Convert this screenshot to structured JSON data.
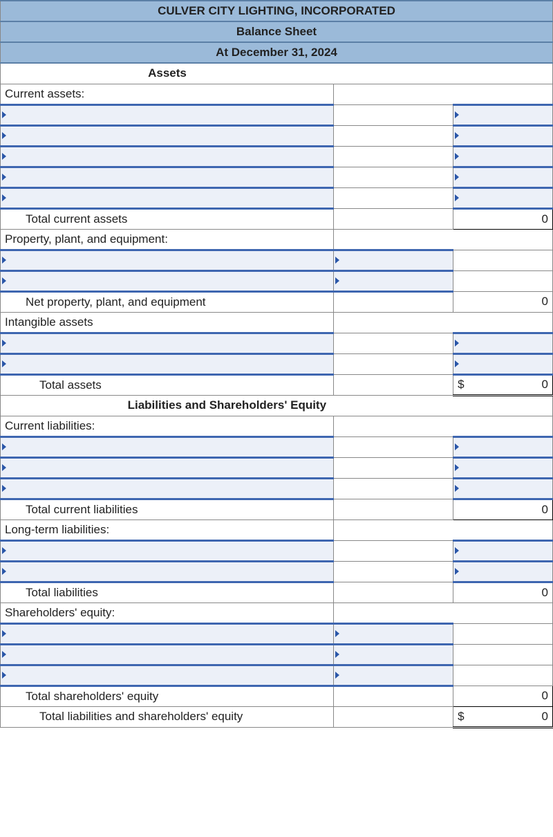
{
  "colors": {
    "header_bg": "#9bbad9",
    "header_border": "#5b7fa6",
    "dropdown_bg": "#ecf0f8",
    "dropdown_border": "#3e66b0",
    "cell_border": "#888888",
    "text": "#222222"
  },
  "header": {
    "company": "CULVER CITY LIGHTING, INCORPORATED",
    "title": "Balance Sheet",
    "date": "At December 31, 2024"
  },
  "sections": {
    "assets": "Assets",
    "liab_equity": "Liabilities and Shareholders' Equity"
  },
  "labels": {
    "current_assets": "Current assets:",
    "total_current_assets": "Total current assets",
    "ppe": "Property, plant, and equipment:",
    "net_ppe": "Net property, plant, and equipment",
    "intangible": "Intangible assets",
    "total_assets": "Total assets",
    "current_liab": "Current liabilities:",
    "total_current_liab": "Total current liabilities",
    "long_term_liab": "Long-term liabilities:",
    "total_liab": "Total liabilities",
    "sh_equity": "Shareholders' equity:",
    "total_sh_equity": "Total shareholders' equity",
    "total_liab_equity": "Total liabilities and shareholders' equity"
  },
  "values": {
    "total_current_assets": "0",
    "net_ppe": "0",
    "total_assets": "0",
    "total_current_liab": "0",
    "total_liab": "0",
    "total_sh_equity": "0",
    "total_liab_equity": "0",
    "currency": "$"
  }
}
